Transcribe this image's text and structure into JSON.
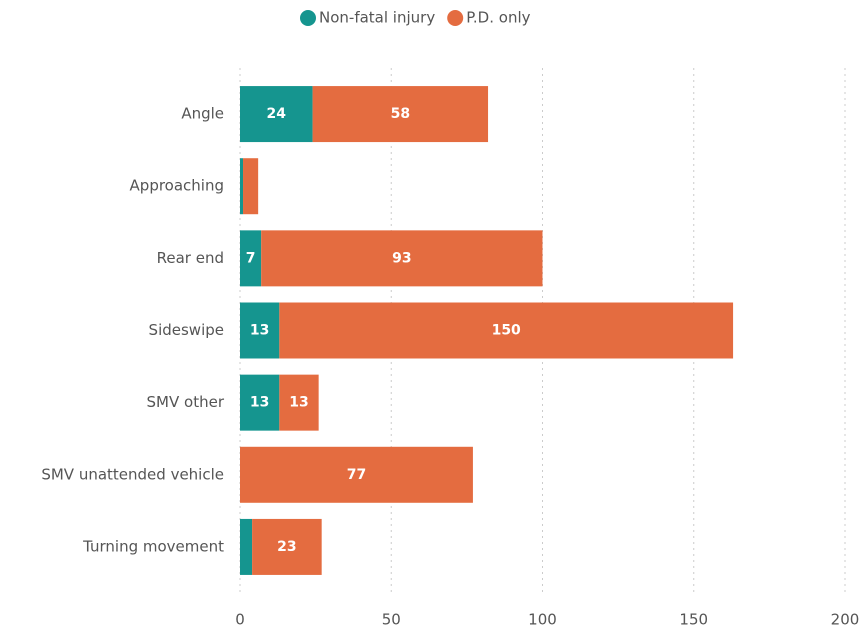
{
  "chart_data": {
    "type": "stacked_bar_horizontal",
    "categories": [
      "Angle",
      "Approaching",
      "Rear end",
      "Sideswipe",
      "SMV other",
      "SMV unattended vehicle",
      "Turning movement"
    ],
    "series": [
      {
        "name": "Non-fatal injury",
        "color": "#15958f",
        "values": [
          24,
          1,
          7,
          13,
          13,
          0,
          4
        ],
        "value_labels": [
          "24",
          null,
          "7",
          "13",
          "13",
          null,
          null
        ]
      },
      {
        "name": "P.D. only",
        "color": "#e46c40",
        "values": [
          58,
          5,
          93,
          150,
          13,
          77,
          23
        ],
        "value_labels": [
          "58",
          null,
          "93",
          "150",
          "13",
          "77",
          "23"
        ]
      }
    ],
    "xlim": [
      0,
      200
    ],
    "xticks": [
      0,
      50,
      100,
      150,
      200
    ],
    "grid": true,
    "legend": "top"
  }
}
